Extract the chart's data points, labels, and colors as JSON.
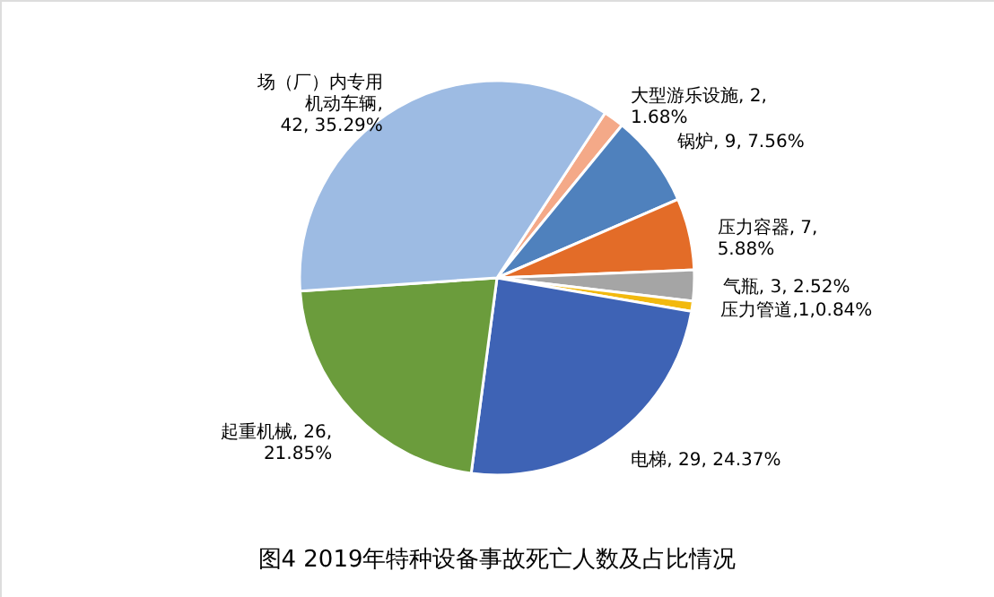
{
  "chart_data": {
    "type": "pie",
    "title": "图4 2019年特种设备事故死亡人数及占比情况",
    "categories": [
      "大型游乐设施",
      "锅炉",
      "压力容器",
      "气瓶",
      "压力管道",
      "电梯",
      "起重机械",
      "场（厂）内专用机动车辆"
    ],
    "values": [
      2,
      9,
      7,
      3,
      1,
      29,
      26,
      42
    ],
    "colors": [
      "#f4a988",
      "#4f81bd",
      "#e36c28",
      "#a5a5a5",
      "#f2b90f",
      "#3e63b5",
      "#6b9c3c",
      "#9dbbe3"
    ],
    "value_labels": [
      ", 2, 1.68%",
      ", 9, 7.56%",
      ", 7, 5.88%",
      ", 3, 2.52%",
      ",1,0.84%",
      ", 29, 24.37%",
      ", 26, 21.85%",
      ", 42, 35.29%"
    ]
  }
}
